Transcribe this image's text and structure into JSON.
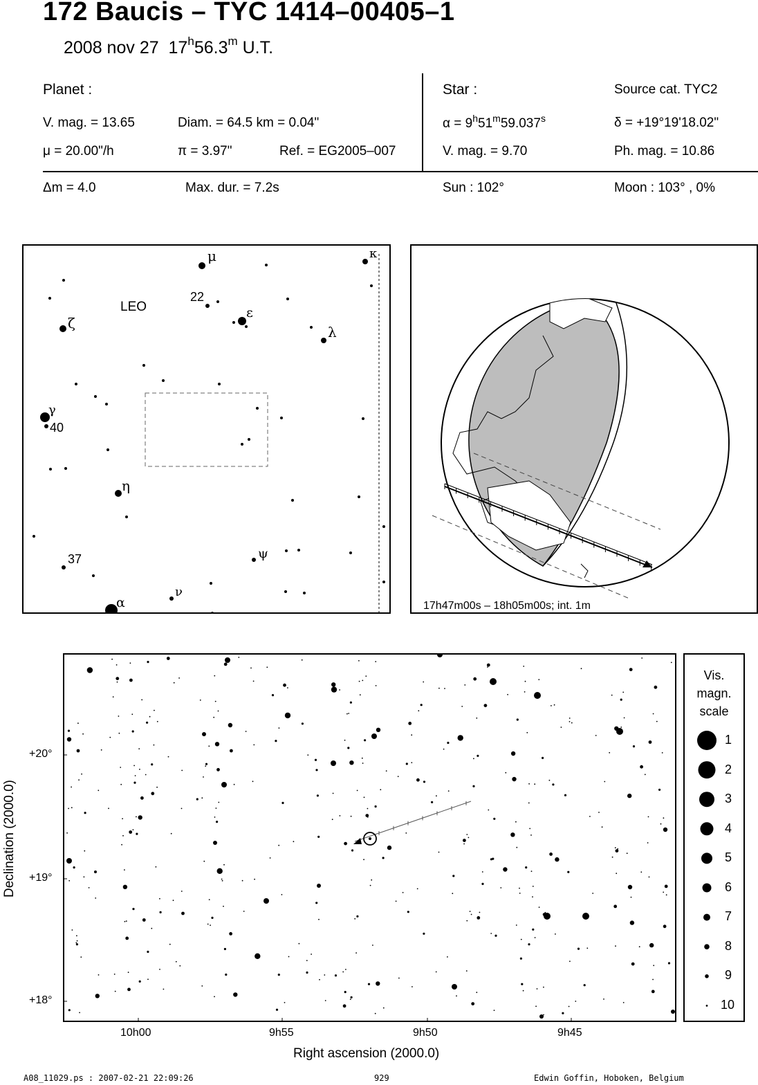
{
  "header": {
    "title": "172 Baucis  –  TYC 1414–00405–1",
    "date": "2008 nov 27",
    "time_h": "17",
    "time_h_unit": "h",
    "time_m": "56.3",
    "time_m_unit": "m",
    "time_suffix": "U.T."
  },
  "planet": {
    "heading": "Planet :",
    "vmag": "V. mag. = 13.65",
    "diam": "Diam. = 64.5 km = 0.04\"",
    "mu": "μ =  20.00\"/h",
    "pi": "π =  3.97\"",
    "ref": "Ref. = EG2005–007"
  },
  "star": {
    "heading": "Star :",
    "source": "Source cat.  TYC2",
    "alpha_prefix": "α =  9",
    "alpha_h": "h",
    "alpha_51": "51",
    "alpha_m": "m",
    "alpha_sec": "59.037",
    "alpha_s": "s",
    "delta": "δ = +19°19'18.02\"",
    "vmag": "V. mag. =  9.70",
    "phmag": "Ph. mag. = 10.86"
  },
  "event": {
    "dm": "Δm = 4.0",
    "maxdur": "Max. dur. = 7.2s",
    "sun": "Sun : 102°",
    "moon": "Moon : 103° ,  0%"
  },
  "finder": {
    "constellation": "LEO",
    "labels": {
      "mu": "μ",
      "kappa": "κ",
      "n22": "22",
      "epsilon": "ε",
      "zeta": "ζ",
      "lambda": "λ",
      "gamma": "γ",
      "n40": "40",
      "eta": "η",
      "n37": "37",
      "psi": "ψ",
      "nu": "ν",
      "alpha": "α"
    }
  },
  "globe": {
    "caption": "17h47m00s – 18h05m00s; int.  1m"
  },
  "starchart": {
    "ra_ticks": [
      "10h00",
      "9h55",
      "9h50",
      "9h45"
    ],
    "dec_ticks": [
      "+20°",
      "+19°",
      "+18°"
    ],
    "xlabel": "Right ascension (2000.0)",
    "ylabel": "Declination (2000.0)"
  },
  "scale": {
    "title_1": "Vis.",
    "title_2": "magn.",
    "title_3": "scale",
    "values": [
      "1",
      "2",
      "3",
      "4",
      "5",
      "6",
      "7",
      "8",
      "9",
      "10"
    ]
  },
  "footer": {
    "left": "A08_11029.ps : 2007-02-21 22:09:26",
    "center": "929",
    "right": "Edwin Goffin, Hoboken, Belgium"
  }
}
